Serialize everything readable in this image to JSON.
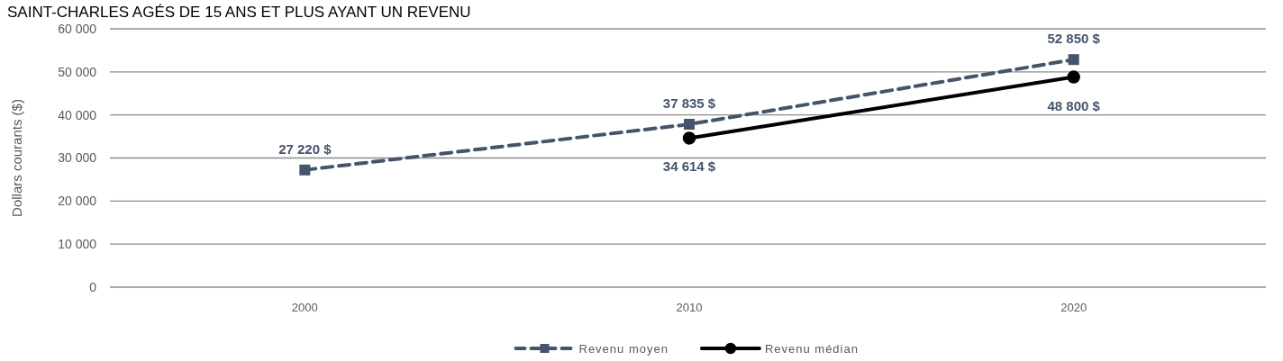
{
  "chart_data": {
    "type": "line",
    "title": "SAINT-CHARLES AGÉS DE 15 ANS ET PLUS AYANT UN REVENU",
    "ylabel": "Dollars courants ($)",
    "categories": [
      "2000",
      "2010",
      "2020"
    ],
    "series": [
      {
        "name": "Revenu moyen",
        "color": "#44546a",
        "values": [
          27220,
          37835,
          52850
        ],
        "marker": "square",
        "line_style": "dashed",
        "value_labels": [
          "27 220 $",
          "37 835 $",
          "52 850 $"
        ]
      },
      {
        "name": "Revenu médian",
        "color": "#000000",
        "values": [
          null,
          34614,
          48800
        ],
        "marker": "circle",
        "line_style": "solid",
        "value_labels": [
          null,
          "34 614 $",
          "48 800 $"
        ]
      }
    ],
    "ylim": [
      0,
      60000
    ],
    "yticks": [
      {
        "value": 0,
        "label": "0"
      },
      {
        "value": 10000,
        "label": "10 000"
      },
      {
        "value": 20000,
        "label": "20 000"
      },
      {
        "value": 30000,
        "label": "30 000"
      },
      {
        "value": 40000,
        "label": "40 000"
      },
      {
        "value": 50000,
        "label": "50 000"
      },
      {
        "value": 60000,
        "label": "60 000"
      }
    ],
    "grid": "y",
    "legend": "bottom"
  }
}
